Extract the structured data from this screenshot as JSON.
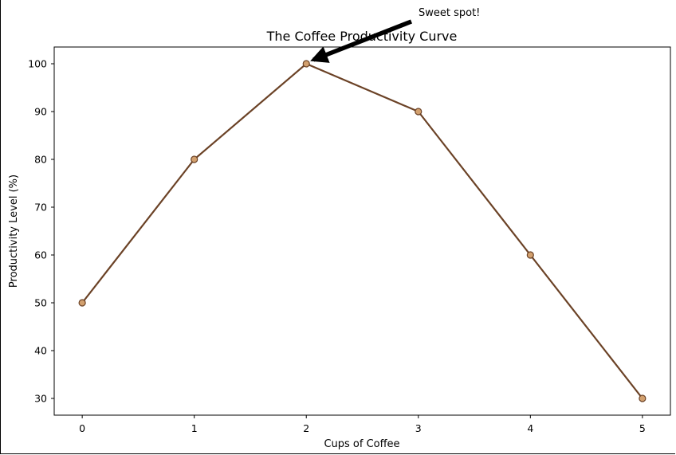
{
  "chart_data": {
    "type": "line",
    "title": "The Coffee Productivity Curve",
    "xlabel": "Cups of Coffee",
    "ylabel": "Productivity Level (%)",
    "x": [
      0,
      1,
      2,
      3,
      4,
      5
    ],
    "series": [
      {
        "values": [
          50,
          80,
          100,
          90,
          60,
          30
        ]
      }
    ],
    "xlim": [
      -0.25,
      5.25
    ],
    "ylim": [
      26.5,
      103.5
    ],
    "xticks": [
      0,
      1,
      2,
      3,
      4,
      5
    ],
    "yticks": [
      30,
      40,
      50,
      60,
      70,
      80,
      90,
      100
    ],
    "grid": false,
    "annotations": [
      {
        "text": "Sweet spot!",
        "target_x": 2,
        "target_y": 100
      }
    ],
    "colors": {
      "line": "#6b4226",
      "marker_fill": "#d2a06e",
      "marker_edge": "#6b4226",
      "arrow": "#000000"
    }
  }
}
